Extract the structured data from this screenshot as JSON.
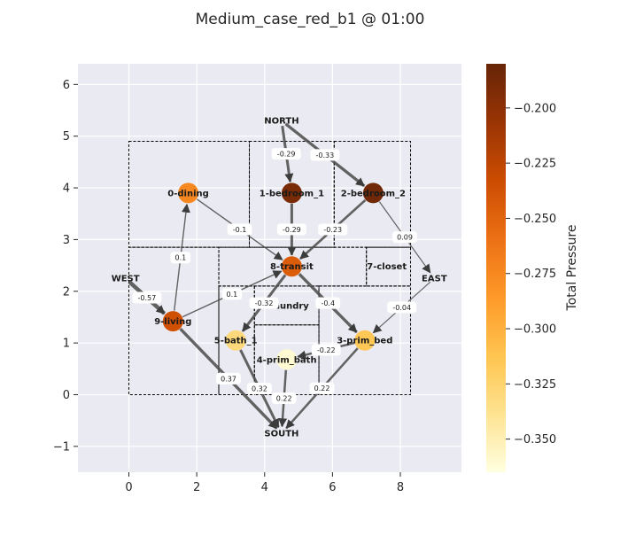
{
  "chart_data": {
    "type": "network",
    "title": "Medium_case_red_b1 @ 01:00",
    "xlim": [
      -1.5,
      9.8
    ],
    "ylim": [
      -1.5,
      6.4
    ],
    "x_ticks": [
      0,
      2,
      4,
      6,
      8
    ],
    "y_ticks": [
      -1,
      0,
      1,
      2,
      3,
      4,
      5,
      6
    ],
    "grid": true,
    "rooms": [
      {
        "x0": 0,
        "y0": 2.85,
        "x1": 3.55,
        "y1": 4.9
      },
      {
        "x0": 3.55,
        "y0": 2.85,
        "x1": 6.05,
        "y1": 4.9
      },
      {
        "x0": 6.05,
        "y0": 2.85,
        "x1": 8.3,
        "y1": 4.9
      },
      {
        "x0": 2.65,
        "y0": 2.1,
        "x1": 7.0,
        "y1": 2.85
      },
      {
        "x0": 7.0,
        "y0": 2.1,
        "x1": 8.3,
        "y1": 2.85
      },
      {
        "x0": 0,
        "y0": 0,
        "x1": 2.65,
        "y1": 2.85
      },
      {
        "x0": 3.7,
        "y0": 1.35,
        "x1": 5.6,
        "y1": 2.1
      },
      {
        "x0": 2.65,
        "y0": 0,
        "x1": 3.7,
        "y1": 2.1
      },
      {
        "x0": 3.7,
        "y0": 0,
        "x1": 5.6,
        "y1": 1.35
      },
      {
        "x0": 5.6,
        "y0": 0,
        "x1": 8.3,
        "y1": 2.1
      }
    ],
    "nodes": [
      {
        "id": "0-dining",
        "x": 1.75,
        "y": 3.9,
        "pressure": -0.275
      },
      {
        "id": "1-bedroom_1",
        "x": 4.8,
        "y": 3.9,
        "pressure": -0.19
      },
      {
        "id": "2-bedroom_2",
        "x": 7.2,
        "y": 3.9,
        "pressure": -0.185
      },
      {
        "id": "3-prim_bed",
        "x": 6.95,
        "y": 1.05,
        "pressure": -0.315
      },
      {
        "id": "4-prim_bath",
        "x": 4.65,
        "y": 0.68,
        "pressure": -0.36
      },
      {
        "id": "5-bath_1",
        "x": 3.15,
        "y": 1.05,
        "pressure": -0.33
      },
      {
        "id": "6-laundry",
        "x": 4.6,
        "y": 1.72,
        "pressure": null
      },
      {
        "id": "7-closet",
        "x": 7.6,
        "y": 2.48,
        "pressure": null
      },
      {
        "id": "8-transit",
        "x": 4.8,
        "y": 2.48,
        "pressure": -0.245
      },
      {
        "id": "9-living",
        "x": 1.3,
        "y": 1.42,
        "pressure": -0.235
      }
    ],
    "external_nodes": [
      {
        "id": "NORTH",
        "x": 4.5,
        "y": 5.3
      },
      {
        "id": "EAST",
        "x": 9.0,
        "y": 2.25
      },
      {
        "id": "WEST",
        "x": -0.1,
        "y": 2.25
      },
      {
        "id": "SOUTH",
        "x": 4.5,
        "y": -0.75
      }
    ],
    "edges": [
      {
        "from": "NORTH",
        "to": "1-bedroom_1",
        "label": "-0.29",
        "width": 3
      },
      {
        "from": "NORTH",
        "to": "2-bedroom_2",
        "label": "-0.33",
        "width": 3.3
      },
      {
        "from": "0-dining",
        "to": "8-transit",
        "label": "-0.1",
        "width": 1.4
      },
      {
        "from": "1-bedroom_1",
        "to": "8-transit",
        "label": "-0.29",
        "width": 3
      },
      {
        "from": "2-bedroom_2",
        "to": "8-transit",
        "label": "-0.23",
        "width": 2.7
      },
      {
        "from": "2-bedroom_2",
        "to": "EAST",
        "label": "0.09",
        "width": 1.2
      },
      {
        "from": "WEST",
        "to": "9-living",
        "label": "-0.57",
        "width": 4.5
      },
      {
        "from": "9-living",
        "to": "0-dining",
        "label": "0.1",
        "width": 1.4
      },
      {
        "from": "9-living",
        "to": "8-transit",
        "label": "0.1",
        "width": 1.4
      },
      {
        "from": "8-transit",
        "to": "5-bath_1",
        "label": "-0.32",
        "width": 3
      },
      {
        "from": "8-transit",
        "to": "3-prim_bed",
        "label": "-0.4",
        "width": 3.4
      },
      {
        "from": "EAST",
        "to": "3-prim_bed",
        "label": "-0.04",
        "width": 1.1
      },
      {
        "from": "3-prim_bed",
        "to": "4-prim_bath",
        "label": "-0.22",
        "width": 2.5
      },
      {
        "from": "9-living",
        "to": "SOUTH",
        "label": "0.37",
        "width": 3.4
      },
      {
        "from": "5-bath_1",
        "to": "SOUTH",
        "label": "0.32",
        "width": 3
      },
      {
        "from": "4-prim_bath",
        "to": "SOUTH",
        "label": "0.22",
        "width": 2.5
      },
      {
        "from": "3-prim_bed",
        "to": "SOUTH",
        "label": "0.22",
        "width": 2.5
      }
    ],
    "colorbar": {
      "label": "Total Pressure",
      "min": -0.365,
      "max": -0.18,
      "ticks": [
        -0.2,
        -0.225,
        -0.25,
        -0.275,
        -0.3,
        -0.325,
        -0.35
      ],
      "tick_labels": [
        "−0.200",
        "−0.225",
        "−0.250",
        "−0.275",
        "−0.300",
        "−0.325",
        "−0.350"
      ],
      "colors": [
        "#ffffe0",
        "#fee391",
        "#fec44f",
        "#fe9929",
        "#ec7014",
        "#cc4c02",
        "#993404",
        "#662506"
      ]
    },
    "colors": {
      "plot_bg": "#eaeaf2",
      "edge": "#4a4a4a",
      "room": "#000000"
    }
  }
}
